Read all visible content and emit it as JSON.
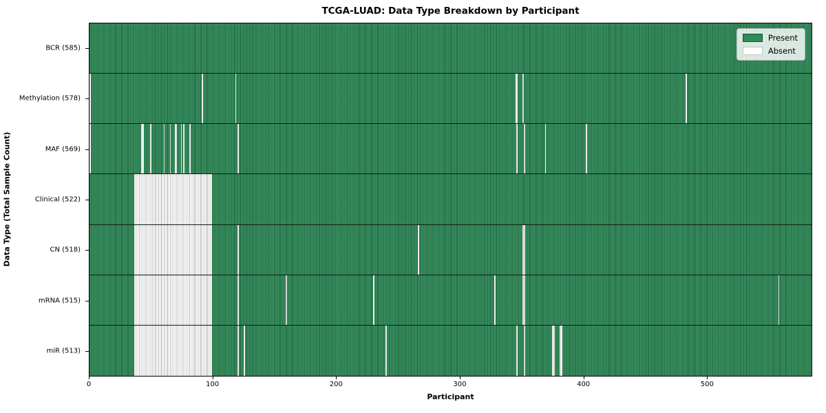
{
  "chart_data": {
    "type": "heatmap",
    "title": "TCGA-LUAD: Data Type Breakdown by Participant",
    "xlabel": "Participant",
    "ylabel": "Data Type (Total Sample Count)",
    "x_range": [
      0,
      585
    ],
    "x_ticks": [
      0,
      100,
      200,
      300,
      400,
      500
    ],
    "grid": false,
    "legend_position": "upper right",
    "colors": {
      "present": "#2e8b57",
      "absent": "#ffffff",
      "edge": "#1b4d33"
    },
    "legend": [
      {
        "label": "Present",
        "color": "#2e8b57"
      },
      {
        "label": "Absent",
        "color": "#ffffff"
      }
    ],
    "rows": [
      {
        "label": "BCR (585)",
        "data_type": "BCR",
        "present_count": 585,
        "absent_ranges": [],
        "absent_points": []
      },
      {
        "label": "Methylation (578)",
        "data_type": "Methylation",
        "present_count": 578,
        "absent_ranges": [],
        "absent_points": [
          0,
          91,
          118,
          345,
          346,
          351,
          483
        ]
      },
      {
        "label": "MAF (569)",
        "data_type": "MAF",
        "present_count": 569,
        "absent_ranges": [],
        "absent_points": [
          0,
          42,
          43,
          49,
          60,
          65,
          69,
          70,
          74,
          76,
          81,
          120,
          346,
          352,
          369,
          402
        ]
      },
      {
        "label": "Clinical (522)",
        "data_type": "Clinical",
        "present_count": 522,
        "absent_ranges": [
          [
            36,
            98
          ]
        ],
        "absent_points": []
      },
      {
        "label": "CN (518)",
        "data_type": "CN",
        "present_count": 518,
        "absent_ranges": [
          [
            36,
            98
          ]
        ],
        "absent_points": [
          120,
          266,
          351,
          352
        ]
      },
      {
        "label": "mRNA (515)",
        "data_type": "mRNA",
        "present_count": 515,
        "absent_ranges": [
          [
            36,
            98
          ]
        ],
        "absent_points": [
          120,
          159,
          230,
          328,
          351,
          352,
          558
        ]
      },
      {
        "label": "miR (513)",
        "data_type": "miR",
        "present_count": 513,
        "absent_ranges": [
          [
            36,
            98
          ]
        ],
        "absent_points": [
          120,
          125,
          240,
          346,
          352,
          375,
          376,
          381,
          382
        ]
      }
    ]
  }
}
